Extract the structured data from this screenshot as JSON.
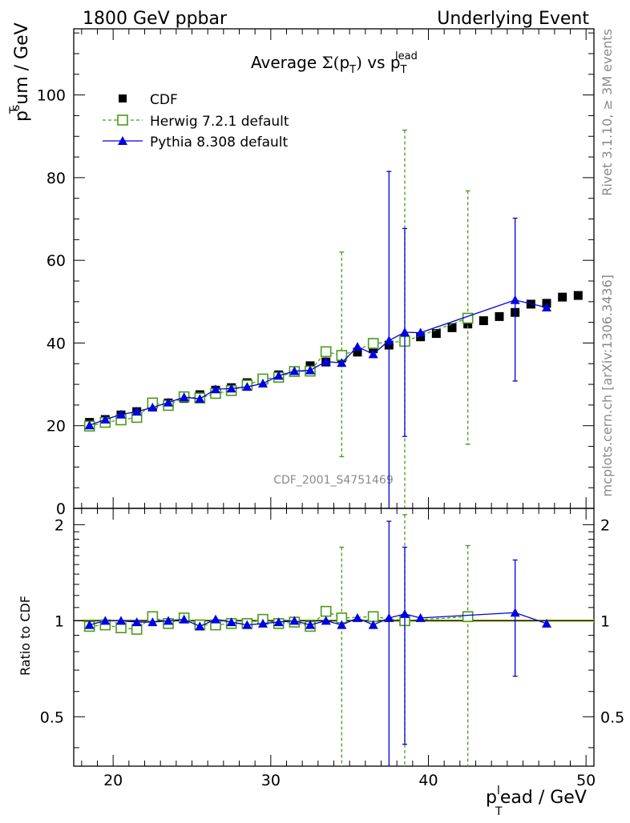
{
  "header": {
    "left": "1800 GeV ppbar",
    "right": "Underlying Event"
  },
  "side": {
    "rivet": "Rivet 3.1.10, ≥ 3M events",
    "mcplots": "mcplots.cern.ch [arXiv:1306.3436]"
  },
  "watermark": "CDF_2001_S4751469",
  "chart_data": {
    "type": "scatter",
    "title": "Average Σ(p_T) vs p_T^lead",
    "xlabel": "p_T^lead / GeV",
    "ylabel": "p_T^sum / GeV",
    "ratio_ylabel": "Ratio to CDF",
    "xlim": [
      17.5,
      50.5
    ],
    "ylim": [
      0,
      116
    ],
    "ratio_ylim": [
      0.35,
      2.25
    ],
    "yticks": [
      0,
      20,
      40,
      60,
      80,
      100
    ],
    "ratio_yticks": [
      0.5,
      1,
      2
    ],
    "xticks": [
      20,
      30,
      40,
      50
    ],
    "legend_position": "top-left",
    "series": [
      {
        "name": "CDF",
        "style": "black-filled-square",
        "color": "#000000",
        "x": [
          18.5,
          19.5,
          20.5,
          21.5,
          22.5,
          23.5,
          24.5,
          25.5,
          26.5,
          27.5,
          28.5,
          29.5,
          30.5,
          31.5,
          32.5,
          33.5,
          34.5,
          35.5,
          36.5,
          37.5,
          38.5,
          39.5,
          40.5,
          41.5,
          42.5,
          43.5,
          44.5,
          45.5,
          46.5,
          47.5,
          48.5,
          49.5
        ],
        "y": [
          20.8,
          21.5,
          22.6,
          23.4,
          24.7,
          25.5,
          26.6,
          27.5,
          28.6,
          29.2,
          30.4,
          31.0,
          32.3,
          33.3,
          34.5,
          35.4,
          36.4,
          37.8,
          38.6,
          39.5,
          40.3,
          41.5,
          42.3,
          43.7,
          44.6,
          45.4,
          46.4,
          47.4,
          49.4,
          49.6,
          51.1,
          51.5
        ]
      },
      {
        "name": "Herwig 7.2.1 default",
        "style": "green-dashed-open-square",
        "color": "#4a9a1a",
        "x": [
          18.5,
          19.5,
          20.5,
          21.5,
          22.5,
          23.5,
          24.5,
          25.5,
          26.5,
          27.5,
          28.5,
          29.5,
          30.5,
          31.5,
          32.5,
          33.5,
          34.5,
          36.5,
          38.5,
          42.5
        ],
        "y": [
          19.9,
          20.8,
          21.4,
          22.0,
          25.5,
          24.9,
          27.0,
          26.7,
          27.8,
          28.5,
          29.8,
          31.3,
          31.7,
          33.1,
          33.2,
          37.9,
          37.0,
          39.9,
          40.4,
          46.0
        ],
        "ylow": [
          null,
          null,
          null,
          null,
          null,
          null,
          null,
          null,
          null,
          null,
          null,
          null,
          null,
          null,
          null,
          null,
          12.5,
          null,
          null,
          15.5
        ],
        "yhigh": [
          null,
          null,
          null,
          null,
          null,
          null,
          null,
          null,
          null,
          null,
          null,
          null,
          null,
          null,
          null,
          null,
          62.0,
          null,
          91.5,
          76.8
        ],
        "ratio": [
          0.96,
          0.97,
          0.95,
          0.94,
          1.03,
          0.98,
          1.02,
          0.97,
          0.97,
          0.98,
          0.98,
          1.01,
          0.98,
          0.99,
          0.96,
          1.07,
          1.02,
          1.03,
          1.0,
          1.03
        ],
        "ratio_low": [
          null,
          null,
          null,
          null,
          null,
          null,
          null,
          null,
          null,
          null,
          null,
          null,
          null,
          null,
          null,
          null,
          0.35,
          null,
          null,
          0.35
        ],
        "ratio_high": [
          null,
          null,
          null,
          null,
          null,
          null,
          null,
          null,
          null,
          null,
          null,
          null,
          null,
          null,
          null,
          null,
          1.7,
          null,
          2.15,
          1.72
        ]
      },
      {
        "name": "Pythia 8.308 default",
        "style": "blue-solid-filled-triangle",
        "color": "#0000e0",
        "x": [
          18.5,
          19.5,
          20.5,
          21.5,
          22.5,
          23.5,
          24.5,
          25.5,
          26.5,
          27.5,
          28.5,
          29.5,
          30.5,
          31.5,
          32.5,
          33.5,
          34.5,
          35.5,
          36.5,
          37.5,
          38.5,
          39.5,
          45.5,
          47.5
        ],
        "y": [
          20.1,
          21.5,
          22.7,
          23.4,
          24.4,
          25.6,
          26.9,
          26.5,
          28.8,
          29.0,
          29.4,
          30.2,
          32.1,
          33.2,
          33.4,
          35.5,
          35.2,
          39.1,
          37.3,
          40.6,
          42.6,
          42.5,
          50.4,
          48.6
        ],
        "ylow": [
          null,
          null,
          null,
          null,
          null,
          null,
          null,
          null,
          null,
          null,
          null,
          null,
          null,
          null,
          null,
          null,
          null,
          null,
          null,
          0,
          17.4,
          null,
          30.8,
          null
        ],
        "yhigh": [
          null,
          null,
          null,
          null,
          null,
          null,
          null,
          null,
          null,
          null,
          null,
          null,
          null,
          null,
          null,
          null,
          null,
          null,
          null,
          81.5,
          67.7,
          null,
          70.2,
          null
        ],
        "ratio": [
          0.97,
          1.0,
          1.0,
          0.99,
          0.99,
          1.0,
          1.01,
          0.96,
          1.01,
          0.99,
          0.97,
          0.98,
          0.99,
          1.0,
          0.97,
          1.0,
          0.97,
          1.02,
          0.97,
          1.02,
          1.05,
          1.02,
          1.06,
          0.98
        ],
        "ratio_low": [
          null,
          null,
          null,
          null,
          null,
          null,
          null,
          null,
          null,
          null,
          null,
          null,
          null,
          null,
          null,
          null,
          null,
          null,
          null,
          0.35,
          0.41,
          null,
          0.67,
          null
        ],
        "ratio_high": [
          null,
          null,
          null,
          null,
          null,
          null,
          null,
          null,
          null,
          null,
          null,
          null,
          null,
          null,
          null,
          null,
          null,
          null,
          null,
          2.05,
          1.7,
          null,
          1.55,
          null
        ]
      }
    ]
  }
}
